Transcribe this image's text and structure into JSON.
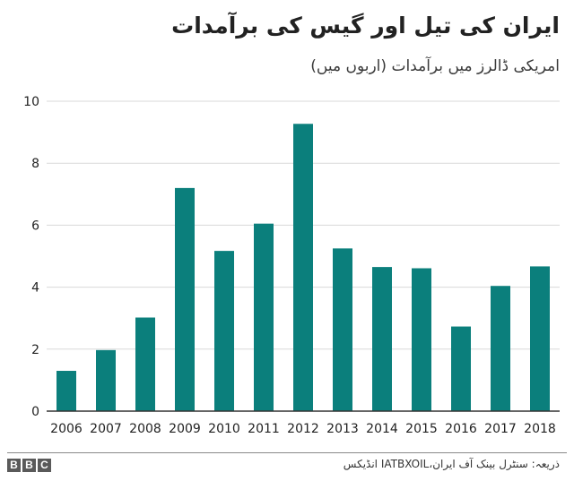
{
  "header": {
    "title": "ایران کی تیل اور گیس کی برآمدات",
    "subtitle": "امریکی ڈالرز میں برآمدات (اربوں میں)"
  },
  "footer": {
    "logo_letters": [
      "B",
      "B",
      "C"
    ],
    "source": "ذریعہ: سنٹرل بینک آف ایران،IATBXOIL انڈیکس"
  },
  "colors": {
    "bar": "#0b7f7c",
    "grid": "#d9d9d9",
    "axis": "#333333",
    "text": "#222222"
  },
  "chart_data": {
    "type": "bar",
    "title": "ایران کی تیل اور گیس کی برآمدات",
    "subtitle": "امریکی ڈالرز میں برآمدات (اربوں میں)",
    "categories": [
      "2006",
      "2007",
      "2008",
      "2009",
      "2010",
      "2011",
      "2012",
      "2013",
      "2014",
      "2015",
      "2016",
      "2017",
      "2018"
    ],
    "values": [
      1.3,
      1.97,
      3.02,
      7.2,
      5.17,
      6.05,
      9.27,
      5.25,
      4.65,
      4.61,
      2.73,
      4.04,
      4.67
    ],
    "ylim": [
      0,
      10
    ],
    "yticks": [
      0,
      2,
      4,
      6,
      8,
      10
    ],
    "grid": true,
    "xlabel": "",
    "ylabel": ""
  }
}
